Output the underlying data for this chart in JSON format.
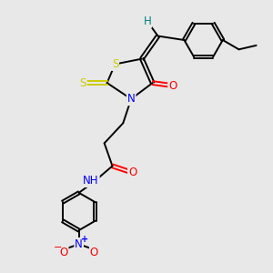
{
  "background_color": "#e8e8e8",
  "bond_color": "#000000",
  "atom_colors": {
    "S": "#cccc00",
    "N": "#0000ff",
    "O": "#ff0000",
    "H": "#008080",
    "C": "#000000"
  },
  "figsize": [
    3.0,
    3.0
  ],
  "dpi": 100
}
